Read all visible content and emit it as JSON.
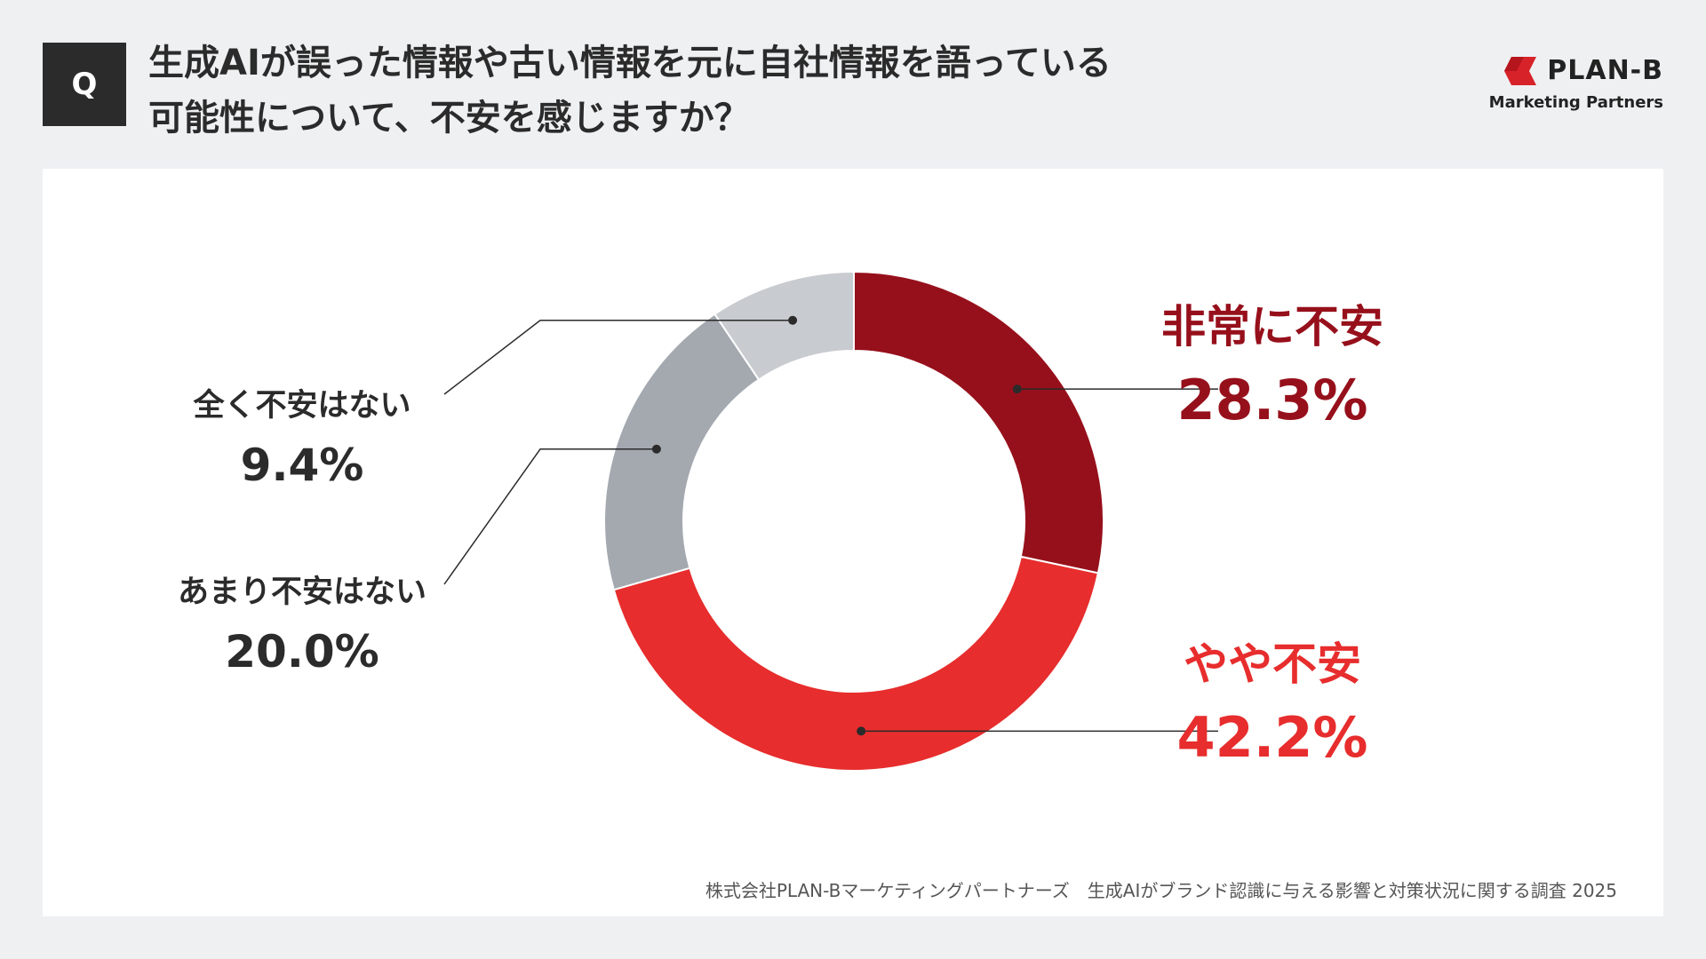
{
  "badge": "Q",
  "question": {
    "line1": "生成AIが誤った情報や古い情報を元に自社情報を語っている",
    "line2": "可能性について、不安を感じますか？"
  },
  "logo": {
    "name": "PLAN-B",
    "sub": "Marketing Partners",
    "icon": "planb-logo-icon",
    "color": "#d72229"
  },
  "chart_data": {
    "type": "pie",
    "variant": "donut",
    "categories": [
      "非常に不安",
      "やや不安",
      "あまり不安はない",
      "全く不安はない"
    ],
    "values": [
      28.3,
      42.2,
      20.0,
      9.4
    ],
    "value_labels": [
      "28.3%",
      "42.2%",
      "20.0%",
      "9.4%"
    ],
    "colors": [
      "#96101b",
      "#e72d2d",
      "#a4a9b0",
      "#c8cbcf"
    ],
    "label_colors": [
      "#96101b",
      "#e72d2d",
      "#2b2b2b",
      "#2b2b2b"
    ],
    "start_angle": "12 o'clock",
    "direction": "clockwise"
  },
  "source": "株式会社PLAN-Bマーケティングパートナーズ　生成AIがブランド認識に与える影響と対策状況に関する調査 2025"
}
